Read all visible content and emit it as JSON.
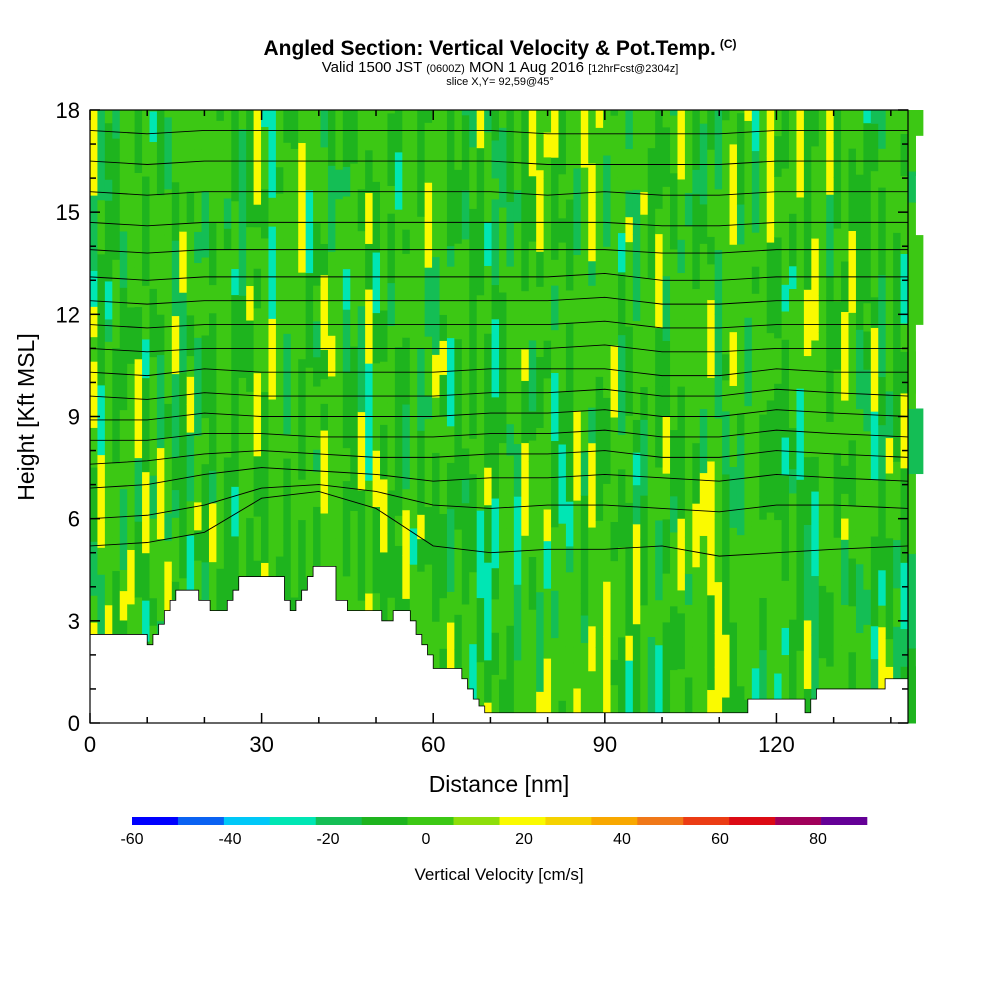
{
  "header": {
    "title_main": "Angled Section: Vertical Velocity & Pot.Temp.",
    "title_unit": "(C)",
    "valid_prefix": "Valid 1500 JST",
    "valid_utc": "(0600Z)",
    "valid_date": "MON 1 Aug 2016",
    "forecast": "[12hrFcst@2304z]",
    "slice": "slice X,Y= 92,59@45°"
  },
  "chart_data": {
    "type": "heatmap",
    "title": "Angled Section: Vertical Velocity & Pot.Temp. (C)",
    "xlabel": "Distance [nm]",
    "ylabel": "Height [Kft MSL]",
    "xlim": [
      0,
      143
    ],
    "ylim": [
      0,
      18
    ],
    "x_ticks": [
      0,
      30,
      60,
      90,
      120
    ],
    "y_ticks": [
      0,
      3,
      6,
      9,
      12,
      15,
      18
    ],
    "grid": false,
    "background_color": "#8ede0a",
    "colorbar": {
      "label": "Vertical Velocity [cm/s]",
      "tick_labels": [
        "-60",
        "-40",
        "-20",
        "0",
        "20",
        "40",
        "60",
        "80"
      ],
      "tick_values": [
        -60,
        -40,
        -20,
        0,
        20,
        40,
        60,
        80
      ],
      "bins": [
        -60,
        -50,
        -40,
        -30,
        -20,
        -10,
        0,
        10,
        20,
        30,
        40,
        50,
        60,
        70,
        80,
        90
      ],
      "colors": [
        "#0000ff",
        "#0a62f2",
        "#00c8f8",
        "#00e6b4",
        "#14be55",
        "#1eb41e",
        "#3cc814",
        "#8ede0a",
        "#fafa00",
        "#f5d200",
        "#f8a800",
        "#f07818",
        "#eb3c14",
        "#dc0a14",
        "#a0005a",
        "#640096"
      ]
    },
    "terrain_kft": [
      [
        0,
        2.6
      ],
      [
        9,
        2.6
      ],
      [
        10,
        2.3
      ],
      [
        11,
        2.6
      ],
      [
        12,
        2.9
      ],
      [
        13,
        3.3
      ],
      [
        14,
        3.6
      ],
      [
        15,
        3.9
      ],
      [
        18,
        3.9
      ],
      [
        19,
        3.6
      ],
      [
        20,
        3.6
      ],
      [
        21,
        3.3
      ],
      [
        23,
        3.3
      ],
      [
        24,
        3.6
      ],
      [
        25,
        3.9
      ],
      [
        26,
        4.3
      ],
      [
        33,
        4.3
      ],
      [
        34,
        3.6
      ],
      [
        35,
        3.3
      ],
      [
        36,
        3.6
      ],
      [
        37,
        3.9
      ],
      [
        38,
        4.3
      ],
      [
        39,
        4.6
      ],
      [
        42,
        4.6
      ],
      [
        43,
        3.6
      ],
      [
        44,
        3.6
      ],
      [
        45,
        3.3
      ],
      [
        50,
        3.3
      ],
      [
        51,
        3.0
      ],
      [
        53,
        3.3
      ],
      [
        56,
        3.0
      ],
      [
        57,
        2.6
      ],
      [
        58,
        2.3
      ],
      [
        59,
        2.0
      ],
      [
        60,
        1.6
      ],
      [
        64,
        1.6
      ],
      [
        65,
        1.3
      ],
      [
        66,
        1.0
      ],
      [
        67,
        0.7
      ],
      [
        68,
        0.5
      ],
      [
        69,
        0.3
      ],
      [
        114,
        0.3
      ],
      [
        115,
        0.7
      ],
      [
        124,
        0.7
      ],
      [
        125,
        0.3
      ],
      [
        126,
        0.7
      ],
      [
        127,
        1.0
      ],
      [
        138,
        1.0
      ],
      [
        139,
        1.3
      ],
      [
        143,
        1.3
      ]
    ],
    "series": [
      {
        "values": [
          [
            0,
            5.2
          ],
          [
            10,
            5.3
          ],
          [
            20,
            5.6
          ],
          [
            30,
            6.6
          ],
          [
            40,
            6.8
          ],
          [
            50,
            6.3
          ],
          [
            60,
            5.2
          ],
          [
            70,
            5.0
          ],
          [
            80,
            5.1
          ],
          [
            90,
            5.1
          ],
          [
            100,
            5.2
          ],
          [
            110,
            4.9
          ],
          [
            120,
            5.0
          ],
          [
            130,
            5.1
          ],
          [
            143,
            5.2
          ]
        ]
      },
      {
        "values": [
          [
            0,
            6.0
          ],
          [
            10,
            6.1
          ],
          [
            20,
            6.4
          ],
          [
            30,
            6.9
          ],
          [
            40,
            7.0
          ],
          [
            50,
            6.8
          ],
          [
            60,
            6.4
          ],
          [
            70,
            6.3
          ],
          [
            80,
            6.4
          ],
          [
            90,
            6.4
          ],
          [
            100,
            6.3
          ],
          [
            110,
            6.2
          ],
          [
            120,
            6.4
          ],
          [
            130,
            6.4
          ],
          [
            143,
            6.3
          ]
        ]
      },
      {
        "values": [
          [
            0,
            6.9
          ],
          [
            10,
            7.0
          ],
          [
            20,
            7.3
          ],
          [
            30,
            7.5
          ],
          [
            40,
            7.4
          ],
          [
            50,
            7.3
          ],
          [
            60,
            7.1
          ],
          [
            70,
            7.2
          ],
          [
            80,
            7.2
          ],
          [
            90,
            7.3
          ],
          [
            100,
            7.2
          ],
          [
            110,
            7.1
          ],
          [
            120,
            7.3
          ],
          [
            130,
            7.2
          ],
          [
            143,
            7.1
          ]
        ]
      },
      {
        "values": [
          [
            0,
            7.6
          ],
          [
            10,
            7.7
          ],
          [
            20,
            7.9
          ],
          [
            30,
            8.0
          ],
          [
            40,
            7.9
          ],
          [
            50,
            7.8
          ],
          [
            60,
            7.8
          ],
          [
            70,
            7.9
          ],
          [
            80,
            7.9
          ],
          [
            90,
            8.0
          ],
          [
            100,
            7.8
          ],
          [
            110,
            7.8
          ],
          [
            120,
            8.0
          ],
          [
            130,
            7.9
          ],
          [
            143,
            7.8
          ]
        ]
      },
      {
        "values": [
          [
            0,
            8.3
          ],
          [
            10,
            8.3
          ],
          [
            20,
            8.5
          ],
          [
            30,
            8.5
          ],
          [
            40,
            8.4
          ],
          [
            50,
            8.4
          ],
          [
            60,
            8.4
          ],
          [
            70,
            8.5
          ],
          [
            80,
            8.5
          ],
          [
            90,
            8.6
          ],
          [
            100,
            8.4
          ],
          [
            110,
            8.4
          ],
          [
            120,
            8.6
          ],
          [
            130,
            8.5
          ],
          [
            143,
            8.4
          ]
        ]
      },
      {
        "values": [
          [
            0,
            8.9
          ],
          [
            10,
            8.9
          ],
          [
            20,
            9.1
          ],
          [
            30,
            9.0
          ],
          [
            40,
            9.0
          ],
          [
            50,
            9.0
          ],
          [
            60,
            9.0
          ],
          [
            70,
            9.1
          ],
          [
            80,
            9.1
          ],
          [
            90,
            9.2
          ],
          [
            100,
            9.0
          ],
          [
            110,
            9.0
          ],
          [
            120,
            9.2
          ],
          [
            130,
            9.1
          ],
          [
            143,
            9.0
          ]
        ]
      },
      {
        "values": [
          [
            0,
            9.6
          ],
          [
            10,
            9.5
          ],
          [
            20,
            9.7
          ],
          [
            30,
            9.6
          ],
          [
            40,
            9.6
          ],
          [
            50,
            9.6
          ],
          [
            60,
            9.6
          ],
          [
            70,
            9.7
          ],
          [
            80,
            9.7
          ],
          [
            90,
            9.8
          ],
          [
            100,
            9.6
          ],
          [
            110,
            9.6
          ],
          [
            120,
            9.8
          ],
          [
            130,
            9.7
          ],
          [
            143,
            9.6
          ]
        ]
      },
      {
        "values": [
          [
            0,
            10.3
          ],
          [
            10,
            10.2
          ],
          [
            20,
            10.4
          ],
          [
            30,
            10.3
          ],
          [
            40,
            10.3
          ],
          [
            50,
            10.3
          ],
          [
            60,
            10.3
          ],
          [
            70,
            10.4
          ],
          [
            80,
            10.4
          ],
          [
            90,
            10.4
          ],
          [
            100,
            10.2
          ],
          [
            110,
            10.2
          ],
          [
            120,
            10.4
          ],
          [
            130,
            10.3
          ],
          [
            143,
            10.3
          ]
        ]
      },
      {
        "values": [
          [
            0,
            11.0
          ],
          [
            10,
            10.9
          ],
          [
            20,
            11.0
          ],
          [
            30,
            11.0
          ],
          [
            40,
            11.0
          ],
          [
            50,
            11.0
          ],
          [
            60,
            11.0
          ],
          [
            70,
            11.0
          ],
          [
            80,
            11.0
          ],
          [
            90,
            11.1
          ],
          [
            100,
            10.9
          ],
          [
            110,
            10.9
          ],
          [
            120,
            11.0
          ],
          [
            130,
            11.0
          ],
          [
            143,
            11.0
          ]
        ]
      },
      {
        "values": [
          [
            0,
            11.7
          ],
          [
            10,
            11.6
          ],
          [
            20,
            11.7
          ],
          [
            30,
            11.7
          ],
          [
            40,
            11.7
          ],
          [
            50,
            11.7
          ],
          [
            60,
            11.7
          ],
          [
            70,
            11.7
          ],
          [
            80,
            11.7
          ],
          [
            90,
            11.8
          ],
          [
            100,
            11.6
          ],
          [
            110,
            11.6
          ],
          [
            120,
            11.7
          ],
          [
            130,
            11.7
          ],
          [
            143,
            11.7
          ]
        ]
      },
      {
        "values": [
          [
            0,
            12.4
          ],
          [
            10,
            12.3
          ],
          [
            20,
            12.4
          ],
          [
            30,
            12.4
          ],
          [
            40,
            12.4
          ],
          [
            50,
            12.4
          ],
          [
            60,
            12.4
          ],
          [
            70,
            12.4
          ],
          [
            80,
            12.4
          ],
          [
            90,
            12.5
          ],
          [
            100,
            12.3
          ],
          [
            110,
            12.3
          ],
          [
            120,
            12.4
          ],
          [
            130,
            12.4
          ],
          [
            143,
            12.4
          ]
        ]
      },
      {
        "values": [
          [
            0,
            13.1
          ],
          [
            10,
            13.0
          ],
          [
            20,
            13.1
          ],
          [
            30,
            13.1
          ],
          [
            40,
            13.1
          ],
          [
            50,
            13.1
          ],
          [
            60,
            13.1
          ],
          [
            70,
            13.1
          ],
          [
            80,
            13.1
          ],
          [
            90,
            13.2
          ],
          [
            100,
            13.0
          ],
          [
            110,
            13.0
          ],
          [
            120,
            13.1
          ],
          [
            130,
            13.1
          ],
          [
            143,
            13.1
          ]
        ]
      },
      {
        "values": [
          [
            0,
            13.9
          ],
          [
            10,
            13.8
          ],
          [
            20,
            13.9
          ],
          [
            30,
            13.9
          ],
          [
            40,
            13.9
          ],
          [
            50,
            13.9
          ],
          [
            60,
            13.9
          ],
          [
            70,
            13.9
          ],
          [
            80,
            13.9
          ],
          [
            90,
            13.9
          ],
          [
            100,
            13.8
          ],
          [
            110,
            13.8
          ],
          [
            120,
            13.9
          ],
          [
            130,
            13.9
          ],
          [
            143,
            13.9
          ]
        ]
      },
      {
        "values": [
          [
            0,
            14.7
          ],
          [
            10,
            14.6
          ],
          [
            20,
            14.7
          ],
          [
            30,
            14.7
          ],
          [
            40,
            14.7
          ],
          [
            50,
            14.7
          ],
          [
            60,
            14.7
          ],
          [
            70,
            14.7
          ],
          [
            80,
            14.7
          ],
          [
            90,
            14.7
          ],
          [
            100,
            14.6
          ],
          [
            110,
            14.6
          ],
          [
            120,
            14.7
          ],
          [
            130,
            14.7
          ],
          [
            143,
            14.7
          ]
        ]
      },
      {
        "values": [
          [
            0,
            15.6
          ],
          [
            10,
            15.5
          ],
          [
            20,
            15.6
          ],
          [
            30,
            15.6
          ],
          [
            40,
            15.6
          ],
          [
            50,
            15.6
          ],
          [
            60,
            15.6
          ],
          [
            70,
            15.6
          ],
          [
            80,
            15.5
          ],
          [
            90,
            15.6
          ],
          [
            100,
            15.5
          ],
          [
            110,
            15.5
          ],
          [
            120,
            15.6
          ],
          [
            130,
            15.6
          ],
          [
            143,
            15.6
          ]
        ]
      },
      {
        "values": [
          [
            0,
            16.5
          ],
          [
            10,
            16.4
          ],
          [
            20,
            16.5
          ],
          [
            30,
            16.5
          ],
          [
            40,
            16.5
          ],
          [
            50,
            16.5
          ],
          [
            60,
            16.5
          ],
          [
            70,
            16.5
          ],
          [
            80,
            16.4
          ],
          [
            90,
            16.4
          ],
          [
            100,
            16.4
          ],
          [
            110,
            16.4
          ],
          [
            120,
            16.5
          ],
          [
            130,
            16.5
          ],
          [
            143,
            16.5
          ]
        ]
      },
      {
        "values": [
          [
            0,
            17.4
          ],
          [
            10,
            17.3
          ],
          [
            20,
            17.4
          ],
          [
            30,
            17.4
          ],
          [
            40,
            17.4
          ],
          [
            50,
            17.4
          ],
          [
            60,
            17.4
          ],
          [
            70,
            17.4
          ],
          [
            80,
            17.3
          ],
          [
            90,
            17.3
          ],
          [
            100,
            17.3
          ],
          [
            110,
            17.3
          ],
          [
            120,
            17.4
          ],
          [
            130,
            17.4
          ],
          [
            143,
            17.4
          ]
        ]
      }
    ]
  }
}
